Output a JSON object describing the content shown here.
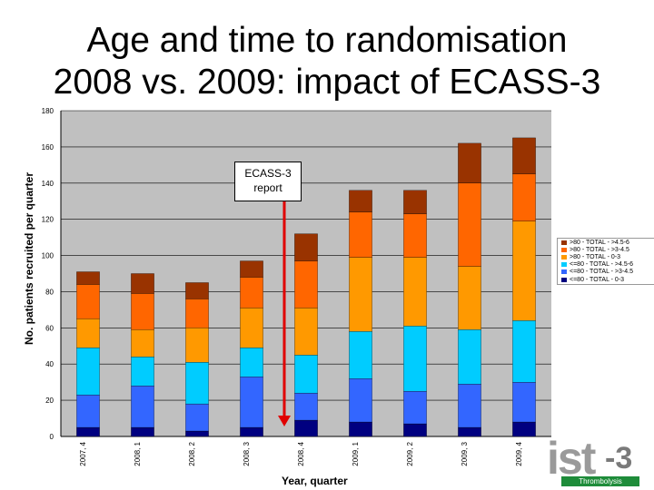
{
  "title_lines": [
    "Age and time to randomisation",
    "2008 vs. 2009: impact of ECASS-3"
  ],
  "annotation": {
    "line1": "ECASS-3",
    "line2": "report"
  },
  "logo": {
    "text": "ist",
    "suffix": "-3",
    "band": "Thrombolysis"
  },
  "colors": {
    "plot_bg": "#c0c0c0",
    "arrow": "#e00000",
    "series": [
      "#000080",
      "#3366ff",
      "#00ccff",
      "#ff9900",
      "#ff6600",
      "#993300"
    ]
  },
  "chart_data": {
    "type": "bar",
    "stacked": true,
    "xlabel": "Year,  quarter",
    "ylabel": "No. patients recruited per quarter",
    "ylim": [
      0,
      180
    ],
    "yticks": [
      0,
      20,
      40,
      60,
      80,
      100,
      120,
      140,
      160,
      180
    ],
    "grid": true,
    "legend_position": "right",
    "categories": [
      "2007, 4",
      "2008, 1",
      "2008, 2",
      "2008, 3",
      "2008, 4",
      "2009, 1",
      "2009, 2",
      "2009, 3",
      "2009, 4"
    ],
    "series": [
      {
        "name": "<=80 - TOTAL - 0-3",
        "values": [
          5,
          5,
          3,
          5,
          9,
          8,
          7,
          5,
          8
        ]
      },
      {
        "name": "<=80 - TOTAL - >3-4.5",
        "values": [
          18,
          23,
          15,
          28,
          15,
          24,
          18,
          24,
          22
        ]
      },
      {
        "name": "<=80 - TOTAL - >4.5-6",
        "values": [
          26,
          16,
          23,
          16,
          21,
          26,
          36,
          30,
          34
        ]
      },
      {
        "name": ">80 - TOTAL - 0-3",
        "values": [
          16,
          15,
          19,
          22,
          26,
          41,
          38,
          35,
          55
        ]
      },
      {
        "name": ">80 - TOTAL - >3-4.5",
        "values": [
          19,
          20,
          16,
          17,
          26,
          25,
          24,
          46,
          26
        ]
      },
      {
        "name": ">80 - TOTAL - >4.5-6",
        "values": [
          7,
          11,
          9,
          9,
          15,
          12,
          13,
          22,
          20
        ]
      }
    ],
    "legend_order": [
      5,
      4,
      3,
      2,
      1,
      0
    ],
    "event_marker": {
      "after_category_index": 3
    }
  }
}
